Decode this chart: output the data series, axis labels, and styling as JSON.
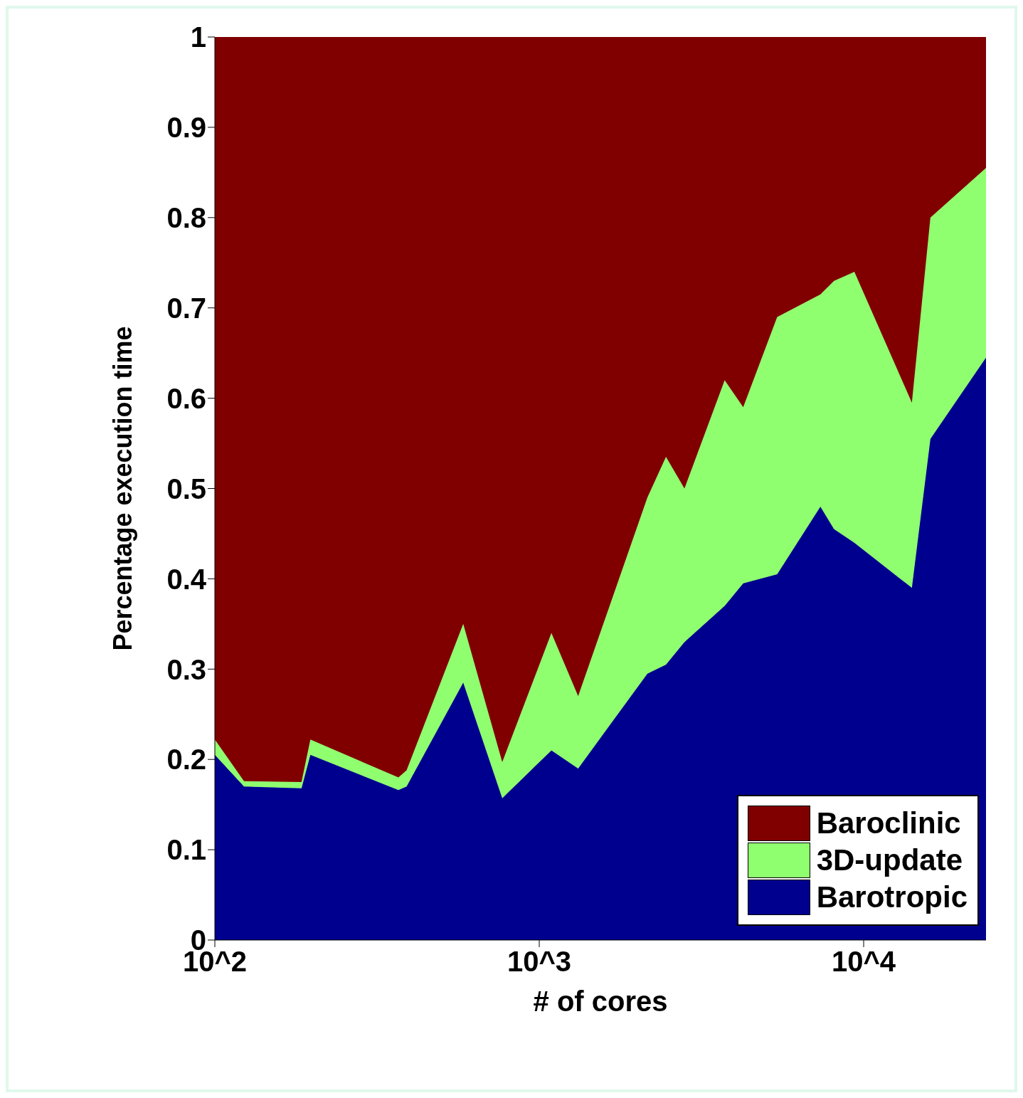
{
  "chart_data": {
    "type": "area",
    "stacked": true,
    "xlabel": "# of cores",
    "ylabel": "Percentage execution time",
    "log": "x",
    "x": [
      100,
      123,
      185,
      197,
      368,
      390,
      583,
      769,
      1090,
      1318,
      2154,
      2458,
      2803,
      3728,
      4253,
      5412,
      7356,
      8100,
      9363,
      14080,
      16060,
      23830
    ],
    "series": [
      {
        "name": "Barotropic",
        "color": "#00008f",
        "values": [
          0.205,
          0.17,
          0.168,
          0.205,
          0.166,
          0.17,
          0.285,
          0.157,
          0.21,
          0.19,
          0.295,
          0.305,
          0.33,
          0.37,
          0.395,
          0.405,
          0.48,
          0.455,
          0.44,
          0.39,
          0.555,
          0.645
        ]
      },
      {
        "name": "3D-update",
        "color": "#8fff6f",
        "values": [
          0.017,
          0.006,
          0.007,
          0.017,
          0.014,
          0.018,
          0.065,
          0.04,
          0.13,
          0.08,
          0.195,
          0.23,
          0.17,
          0.25,
          0.195,
          0.285,
          0.235,
          0.275,
          0.3,
          0.205,
          0.245,
          0.21
        ]
      },
      {
        "name": "Baroclinic",
        "color": "#800000",
        "values": [
          0.778,
          0.824,
          0.825,
          0.778,
          0.82,
          0.812,
          0.65,
          0.803,
          0.66,
          0.73,
          0.51,
          0.465,
          0.5,
          0.38,
          0.41,
          0.31,
          0.285,
          0.27,
          0.26,
          0.405,
          0.2,
          0.145
        ]
      }
    ],
    "xlim": [
      100,
      23830
    ],
    "xticks": [
      {
        "value": 100,
        "label": "10^2"
      },
      {
        "value": 1000,
        "label": "10^3"
      },
      {
        "value": 10000,
        "label": "10^4"
      }
    ],
    "ylim": [
      0,
      1
    ],
    "yticks": [
      0,
      0.1,
      0.2,
      0.3,
      0.4,
      0.5,
      0.6,
      0.7,
      0.8,
      0.9,
      1
    ],
    "legend": "bottom right"
  }
}
